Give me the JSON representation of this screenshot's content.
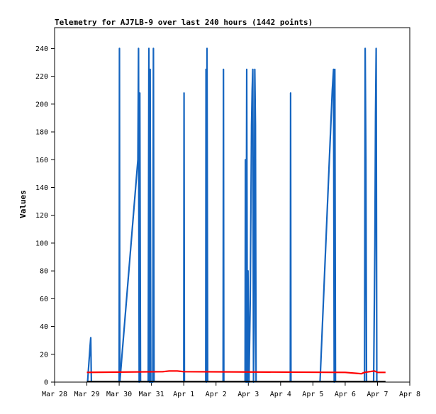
{
  "chart_data": {
    "type": "line",
    "title": "Telemetry for AJ7LB-9 over last 240 hours (1442 points)",
    "xlabel": "",
    "ylabel": "Values",
    "x_tick_labels": [
      "Mar 28",
      "Mar 29",
      "Mar 30",
      "Mar 31",
      "Apr 1",
      "Apr 2",
      "Apr 3",
      "Apr 4",
      "Apr 5",
      "Apr 6",
      "Apr 7",
      "Apr 8"
    ],
    "xlim": [
      0,
      11
    ],
    "y_ticks": [
      0,
      20,
      40,
      60,
      80,
      100,
      120,
      140,
      160,
      180,
      200,
      220,
      240
    ],
    "ylim": [
      0,
      255
    ],
    "grid": false,
    "colors": {
      "blue": "#1565c0",
      "red": "#ff0000",
      "black": "#000000"
    },
    "series": [
      {
        "color": "#1565c0",
        "segments": [
          [
            [
              1.02,
              0
            ],
            [
              1.1,
              26
            ],
            [
              1.12,
              32
            ],
            [
              1.14,
              0
            ]
          ],
          [
            [
              2.0,
              0
            ],
            [
              2.01,
              240
            ],
            [
              2.02,
              0
            ]
          ],
          [
            [
              2.02,
              0
            ],
            [
              2.58,
              160
            ],
            [
              2.6,
              240
            ],
            [
              2.62,
              0
            ],
            [
              2.64,
              208
            ],
            [
              2.66,
              0
            ]
          ],
          [
            [
              2.9,
              0
            ],
            [
              2.92,
              240
            ],
            [
              2.94,
              0
            ],
            [
              2.96,
              225
            ],
            [
              2.98,
              0
            ],
            [
              3.04,
              0
            ],
            [
              3.06,
              240
            ],
            [
              3.08,
              0
            ]
          ],
          [
            [
              4.0,
              0
            ],
            [
              4.01,
              208
            ],
            [
              4.02,
              0
            ]
          ],
          [
            [
              4.68,
              0
            ],
            [
              4.69,
              225
            ],
            [
              4.7,
              0
            ],
            [
              4.72,
              240
            ],
            [
              4.74,
              0
            ]
          ],
          [
            [
              5.22,
              0
            ],
            [
              5.23,
              225
            ],
            [
              5.24,
              0
            ]
          ],
          [
            [
              5.9,
              0
            ],
            [
              5.91,
              160
            ],
            [
              5.93,
              0
            ],
            [
              5.95,
              225
            ],
            [
              5.97,
              0
            ],
            [
              5.99,
              80
            ],
            [
              6.02,
              0
            ],
            [
              6.06,
              60
            ],
            [
              6.1,
              185
            ],
            [
              6.12,
              210
            ],
            [
              6.14,
              225
            ],
            [
              6.16,
              0
            ],
            [
              6.18,
              40
            ],
            [
              6.2,
              225
            ],
            [
              6.22,
              185
            ],
            [
              6.24,
              0
            ]
          ],
          [
            [
              7.3,
              0
            ],
            [
              7.31,
              208
            ],
            [
              7.32,
              0
            ]
          ],
          [
            [
              8.22,
              0
            ],
            [
              8.6,
              210
            ],
            [
              8.64,
              225
            ],
            [
              8.66,
              0
            ],
            [
              8.68,
              225
            ],
            [
              8.7,
              0
            ]
          ],
          [
            [
              9.6,
              0
            ],
            [
              9.62,
              240
            ],
            [
              9.64,
              160
            ],
            [
              9.66,
              0
            ]
          ],
          [
            [
              9.88,
              0
            ],
            [
              9.92,
              98
            ],
            [
              9.94,
              192
            ],
            [
              9.96,
              240
            ],
            [
              9.98,
              0
            ]
          ]
        ]
      },
      {
        "color": "#ff0000",
        "segments": [
          [
            [
              1.0,
              7
            ],
            [
              3.35,
              7.5
            ],
            [
              3.55,
              8
            ],
            [
              3.8,
              8
            ],
            [
              4.0,
              7.5
            ],
            [
              9.0,
              7
            ],
            [
              9.5,
              6
            ],
            [
              9.6,
              7
            ],
            [
              9.9,
              8
            ],
            [
              10.0,
              7
            ],
            [
              10.25,
              7
            ]
          ]
        ]
      },
      {
        "color": "#000000",
        "segments": [
          [
            [
              1.0,
              0.4
            ],
            [
              10.25,
              0.4
            ]
          ]
        ]
      }
    ]
  }
}
